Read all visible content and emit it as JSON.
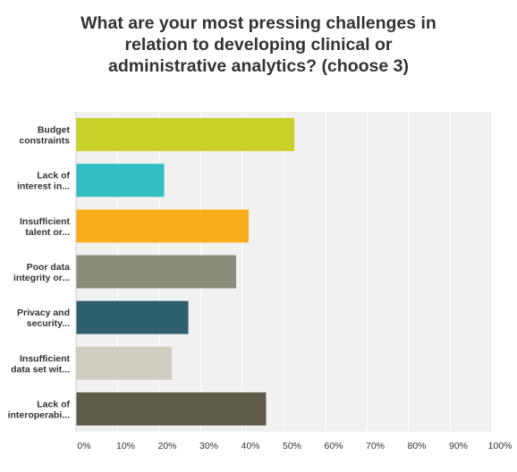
{
  "chart_data": {
    "type": "bar",
    "orientation": "horizontal",
    "title": "What are your most pressing challenges in\nrelation to developing clinical or\nadministrative analytics? (choose 3)",
    "categories": [
      [
        "Budget",
        "constraints"
      ],
      [
        "Lack of",
        "interest in..."
      ],
      [
        "Insufficient",
        "talent or..."
      ],
      [
        "Poor data",
        "integrity or..."
      ],
      [
        "Privacy and",
        "security..."
      ],
      [
        "Insufficient",
        "data set wit..."
      ],
      [
        "Lack of",
        "interoperabi..."
      ]
    ],
    "values": [
      52.5,
      21.2,
      41.5,
      38.5,
      27.0,
      23.0,
      45.7
    ],
    "colors": [
      "#c8d22b",
      "#33bec1",
      "#f7ad1c",
      "#8a8b7b",
      "#2d5f6d",
      "#cfcec1",
      "#5e5b4c"
    ],
    "xlim": [
      0,
      100
    ],
    "tick_labels": [
      "0%",
      "10%",
      "20%",
      "30%",
      "40%",
      "50%",
      "60%",
      "70%",
      "80%",
      "90%",
      "100%"
    ],
    "grid": true,
    "legend": "none"
  }
}
